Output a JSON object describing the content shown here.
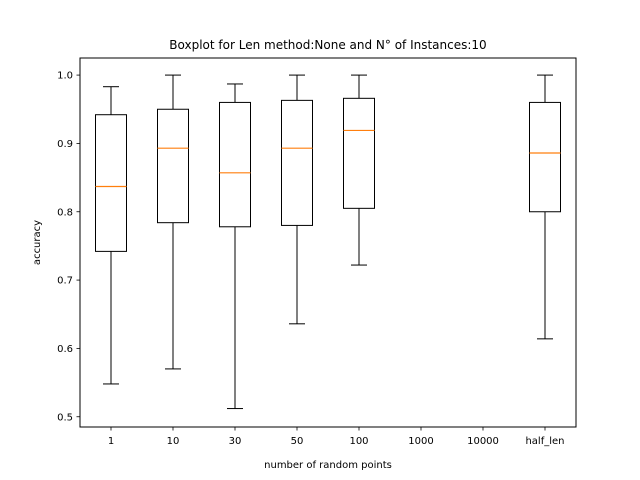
{
  "chart_data": {
    "type": "boxplot",
    "title": "Boxplot for Len method:None and N° of Instances:10",
    "xlabel": "number of random points",
    "ylabel": "accuracy",
    "categories": [
      "1",
      "10",
      "30",
      "50",
      "100",
      "1000",
      "10000",
      "half_len"
    ],
    "ylim": [
      0.485,
      1.025
    ],
    "yticks": [
      0.5,
      0.6,
      0.7,
      0.8,
      0.9,
      1.0
    ],
    "ytick_labels": [
      "0.5",
      "0.6",
      "0.7",
      "0.8",
      "0.9",
      "1.0"
    ],
    "grid": false,
    "boxes": [
      {
        "category": "1",
        "whisker_low": 0.548,
        "q1": 0.742,
        "median": 0.837,
        "q3": 0.942,
        "whisker_high": 0.983
      },
      {
        "category": "10",
        "whisker_low": 0.57,
        "q1": 0.784,
        "median": 0.893,
        "q3": 0.95,
        "whisker_high": 1.0
      },
      {
        "category": "30",
        "whisker_low": 0.512,
        "q1": 0.778,
        "median": 0.857,
        "q3": 0.96,
        "whisker_high": 0.987
      },
      {
        "category": "50",
        "whisker_low": 0.636,
        "q1": 0.78,
        "median": 0.893,
        "q3": 0.963,
        "whisker_high": 1.0
      },
      {
        "category": "100",
        "whisker_low": 0.722,
        "q1": 0.805,
        "median": 0.919,
        "q3": 0.966,
        "whisker_high": 1.0
      },
      {
        "category": "1000",
        "whisker_low": null,
        "q1": null,
        "median": null,
        "q3": null,
        "whisker_high": null
      },
      {
        "category": "10000",
        "whisker_low": null,
        "q1": null,
        "median": null,
        "q3": null,
        "whisker_high": null
      },
      {
        "category": "half_len",
        "whisker_low": 0.614,
        "q1": 0.8,
        "median": 0.886,
        "q3": 0.96,
        "whisker_high": 1.0
      }
    ],
    "colors": {
      "box": "#000000",
      "median": "#ff7f0e",
      "axes": "#000000",
      "background": "#ffffff"
    }
  }
}
